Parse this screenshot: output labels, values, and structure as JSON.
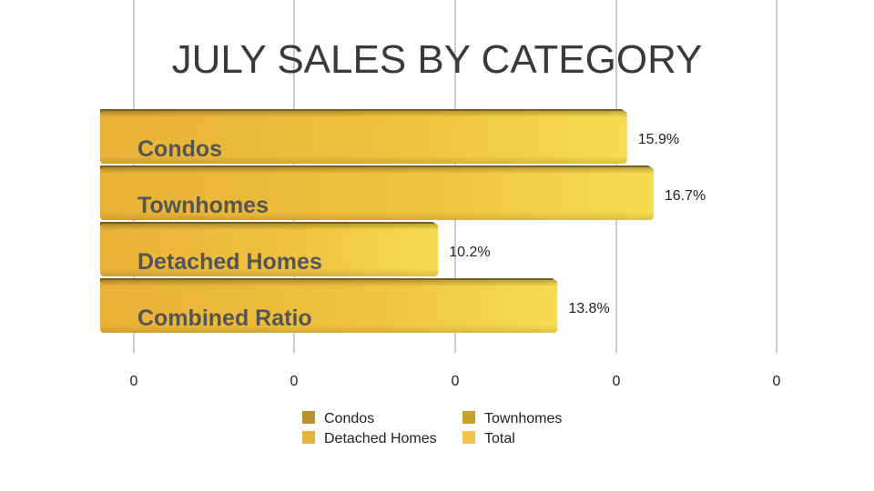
{
  "chart_data": {
    "type": "bar",
    "orientation": "horizontal",
    "title": "JULY SALES BY CATEGORY",
    "categories": [
      "Condos",
      "Townhomes",
      "Detached Homes",
      "Combined Ratio"
    ],
    "values": [
      15.9,
      16.7,
      10.2,
      13.8
    ],
    "value_labels": [
      "15.9%",
      "16.7%",
      "10.2%",
      "13.8%"
    ],
    "value_unit": "%",
    "xlim": [
      0,
      20
    ],
    "x_tick_labels": [
      "0",
      "0",
      "0",
      "0",
      "0"
    ],
    "grid": true,
    "legend_position": "bottom",
    "legend": [
      "Condos",
      "Townhomes",
      "Detached Homes",
      "Total"
    ],
    "legend_colors": [
      "#b89530",
      "#c9a02c",
      "#e3b53c",
      "#f2c44e"
    ],
    "bar_colors": [
      "#f0c03a",
      "#f0c03a",
      "#f3cb46",
      "#f6dc4c"
    ]
  }
}
